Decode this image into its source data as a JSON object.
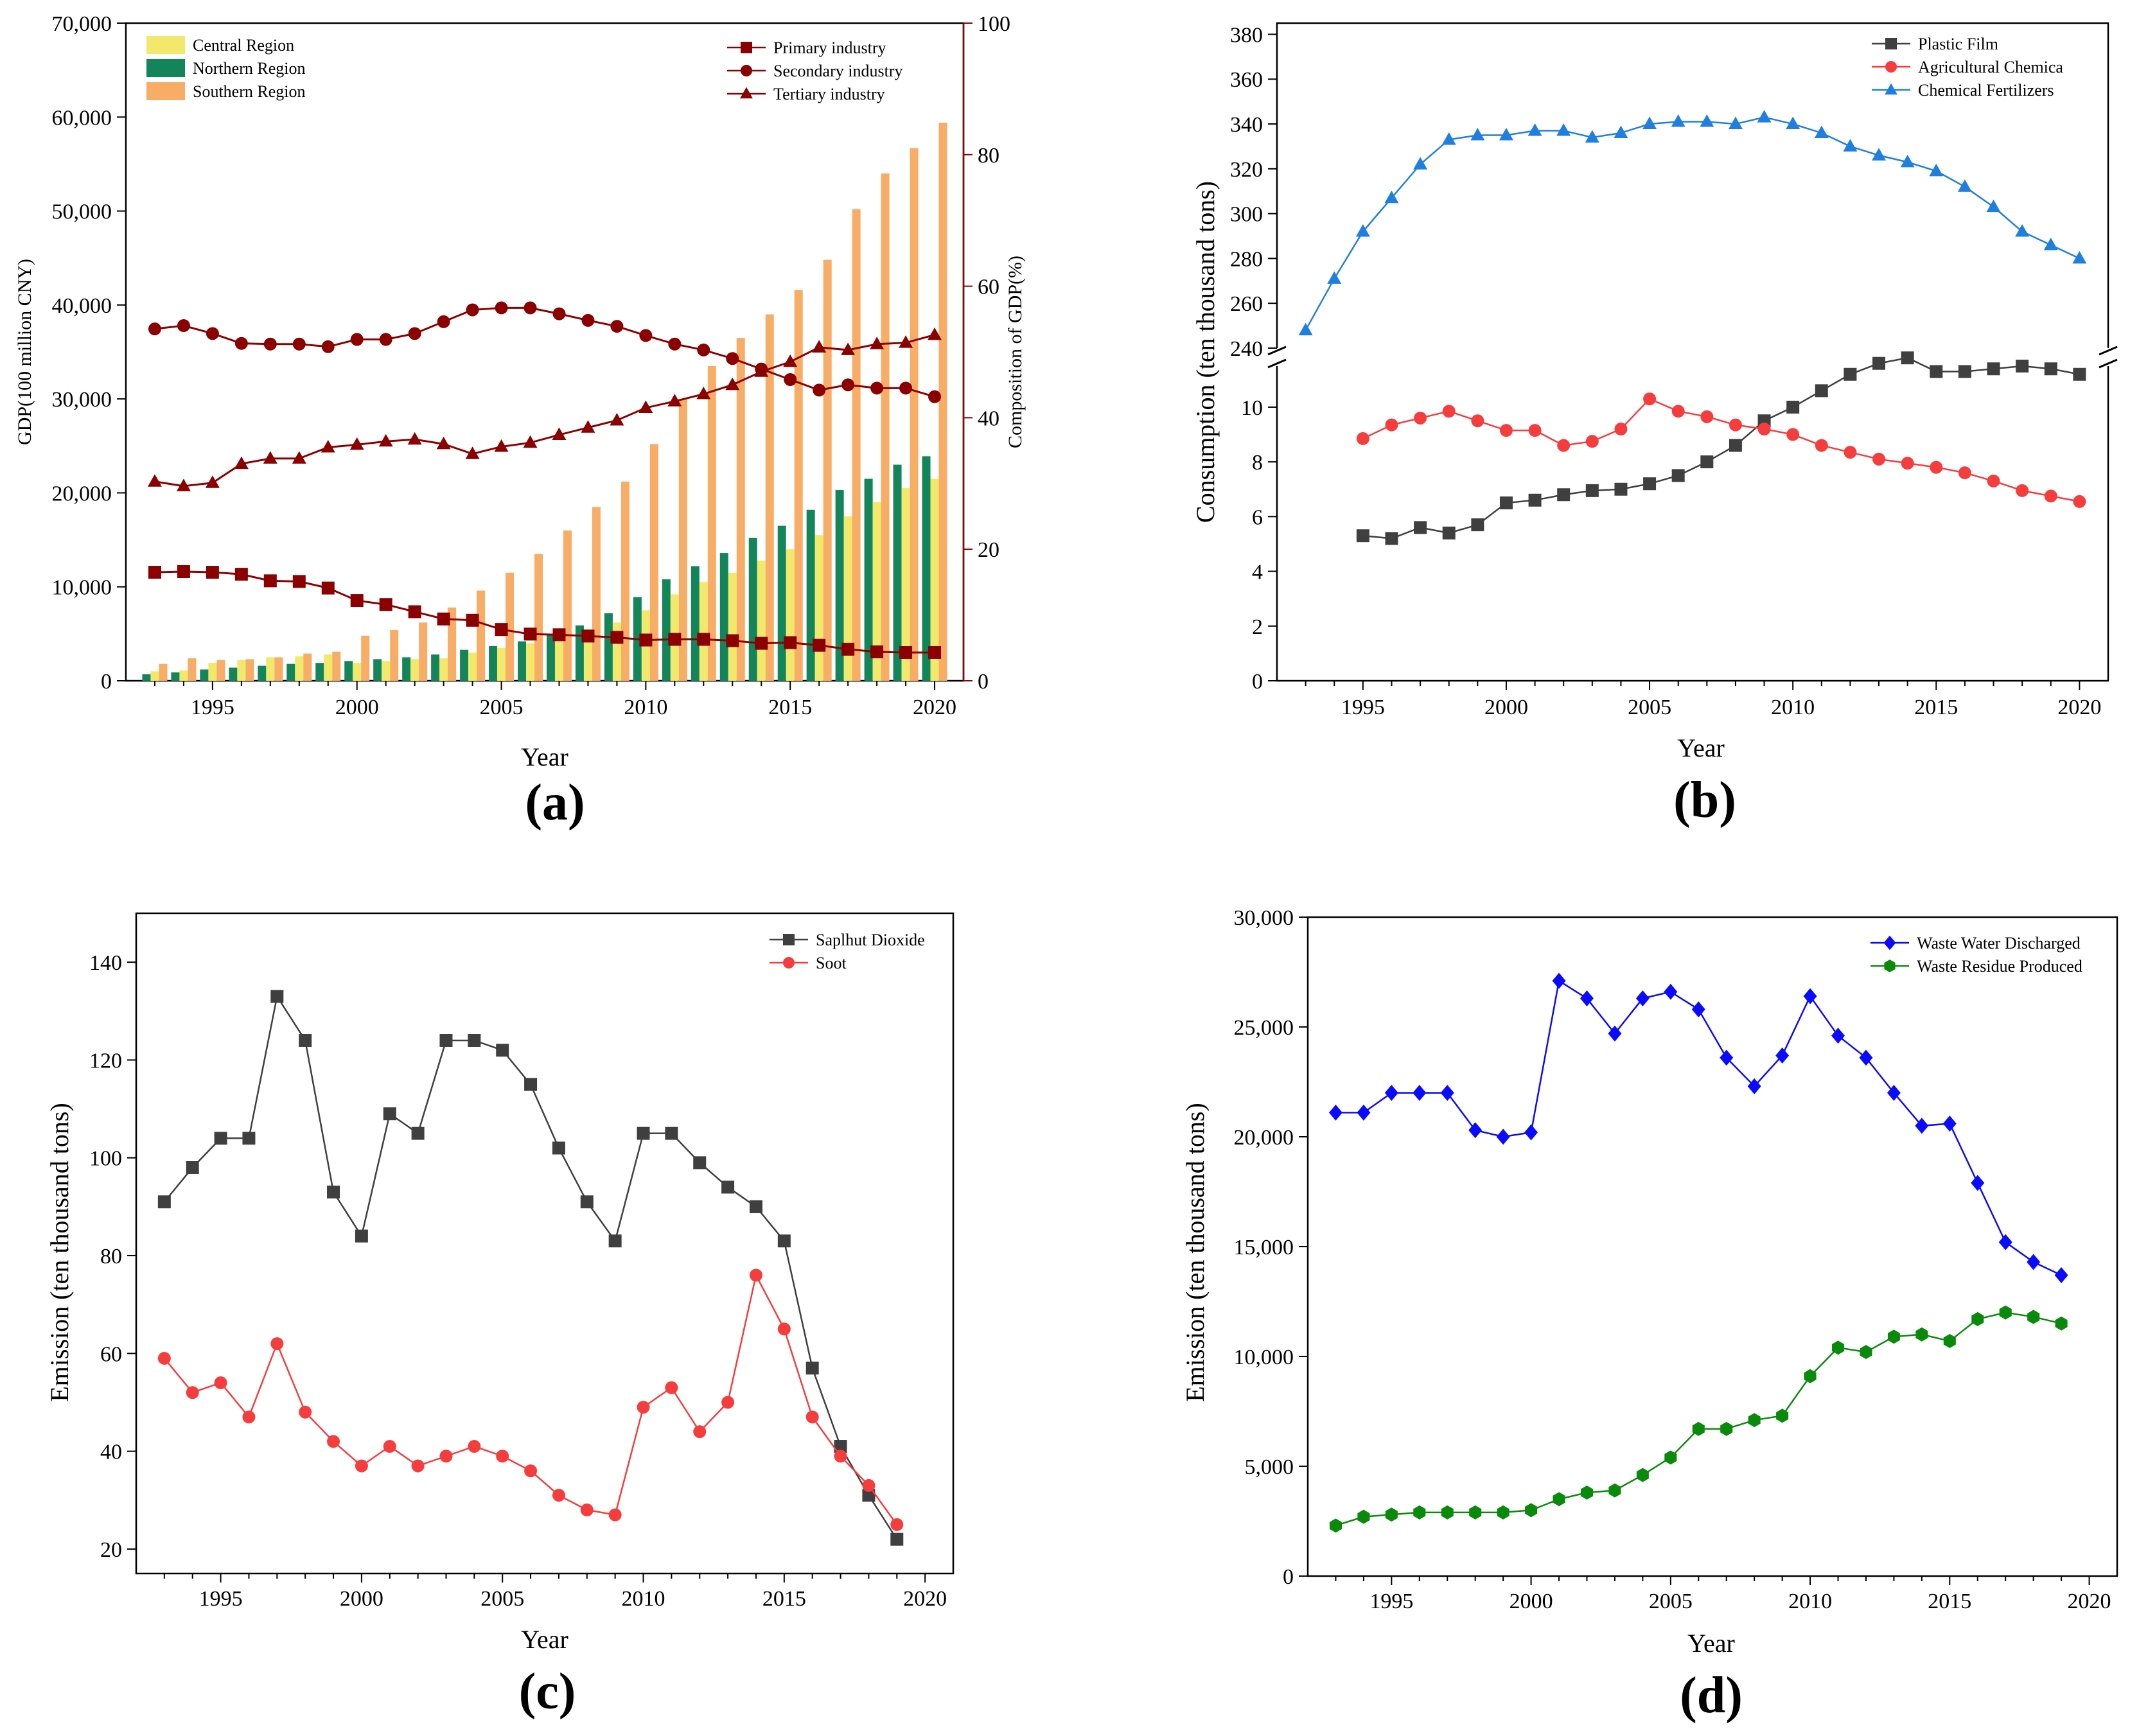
{
  "chart_data": [
    {
      "panel_label": "(a)",
      "type": "bar",
      "xlabel": "Year",
      "ylabel": "GDP(100 million CNY)",
      "y2label": "Composition of GDP(%)",
      "xlim": [
        1992,
        2021
      ],
      "xticks": [
        1995,
        2000,
        2005,
        2010,
        2015,
        2020
      ],
      "ylim": [
        0,
        70000
      ],
      "yticks": [
        "0",
        "10,000",
        "20,000",
        "30,000",
        "40,000",
        "50,000",
        "60,000",
        "70,000"
      ],
      "y2lim": [
        0,
        100
      ],
      "y2ticks": [
        "0",
        "20",
        "40",
        "60",
        "80",
        "100"
      ],
      "x": [
        1993,
        1994,
        1995,
        1996,
        1997,
        1998,
        1999,
        2000,
        2001,
        2002,
        2003,
        2004,
        2005,
        2006,
        2007,
        2008,
        2009,
        2010,
        2011,
        2012,
        2013,
        2014,
        2015,
        2016,
        2017,
        2018,
        2019,
        2020
      ],
      "bar_series": [
        {
          "name": "Central Region",
          "color": "#f2e86b",
          "values": [
            1000,
            1100,
            1900,
            2200,
            2500,
            2600,
            2800,
            1900,
            2100,
            2300,
            2400,
            3000,
            3500,
            4000,
            4700,
            5500,
            6200,
            7500,
            9200,
            10500,
            11500,
            12800,
            14000,
            15500,
            17500,
            19000,
            20500,
            21500
          ]
        },
        {
          "name": "Northern Region",
          "color": "#12865a",
          "values": [
            700,
            900,
            1200,
            1400,
            1600,
            1800,
            1900,
            2100,
            2300,
            2500,
            2800,
            3300,
            3700,
            4200,
            4900,
            5900,
            7200,
            8900,
            10800,
            12200,
            13600,
            15200,
            16500,
            18200,
            20300,
            21500,
            23000,
            23900
          ]
        },
        {
          "name": "Southern Region",
          "color": "#f8ad67",
          "values": [
            1800,
            2400,
            2200,
            2300,
            2500,
            2900,
            3100,
            4800,
            5400,
            6200,
            7800,
            9600,
            11500,
            13500,
            16000,
            18500,
            21200,
            25200,
            30000,
            33500,
            36500,
            39000,
            41600,
            44800,
            50200,
            54000,
            56700,
            59400
          ]
        }
      ],
      "line_series": [
        {
          "name": "Primary industry",
          "marker": "square",
          "color": "#8b0000",
          "values": [
            16.5,
            16.6,
            16.5,
            16.2,
            15.2,
            15.1,
            14.1,
            12.2,
            11.6,
            10.5,
            9.4,
            9.2,
            7.8,
            7.1,
            7.0,
            6.8,
            6.6,
            6.2,
            6.3,
            6.3,
            6.1,
            5.7,
            5.8,
            5.4,
            4.8,
            4.4,
            4.3,
            4.3
          ]
        },
        {
          "name": "Secondary industry",
          "marker": "circle",
          "color": "#8b0000",
          "values": [
            53.5,
            54.0,
            52.8,
            51.3,
            51.2,
            51.2,
            50.8,
            51.9,
            51.9,
            52.8,
            54.6,
            56.4,
            56.7,
            56.7,
            55.8,
            54.8,
            53.9,
            52.5,
            51.2,
            50.3,
            49.0,
            47.4,
            45.8,
            44.2,
            45.0,
            44.5,
            44.5,
            43.2
          ]
        },
        {
          "name": "Tertiary industry",
          "marker": "triangle",
          "color": "#8b0000",
          "values": [
            30.3,
            29.6,
            30.1,
            33.0,
            33.8,
            33.8,
            35.5,
            35.9,
            36.4,
            36.7,
            36.0,
            34.5,
            35.6,
            36.2,
            37.4,
            38.5,
            39.6,
            41.5,
            42.5,
            43.6,
            45.0,
            47.0,
            48.5,
            50.7,
            50.3,
            51.2,
            51.4,
            52.6
          ]
        }
      ]
    },
    {
      "panel_label": "(b)",
      "type": "line",
      "xlabel": "Year",
      "ylabel": "Consumption (ten thousand tons)",
      "xlim": [
        1992,
        2021
      ],
      "xticks": [
        1995,
        2000,
        2005,
        2010,
        2015,
        2020
      ],
      "broken_axis": true,
      "upper_ylim": [
        240,
        385
      ],
      "upper_yticks": [
        240,
        260,
        280,
        300,
        320,
        340,
        360,
        380
      ],
      "lower_ylim": [
        0,
        11.5
      ],
      "lower_yticks": [
        0,
        2,
        4,
        6,
        8,
        10
      ],
      "series": [
        {
          "name": "Plastic Film",
          "marker": "square",
          "color": "#3f3f3f",
          "axis": "lower",
          "x": [
            1995,
            1996,
            1997,
            1998,
            1999,
            2000,
            2001,
            2002,
            2003,
            2004,
            2005,
            2006,
            2007,
            2008,
            2009,
            2010,
            2011,
            2012,
            2013,
            2014,
            2015,
            2016,
            2017,
            2018,
            2019,
            2020
          ],
          "values": [
            5.3,
            5.2,
            5.6,
            5.4,
            5.7,
            6.5,
            6.6,
            6.8,
            6.95,
            7.0,
            7.2,
            7.5,
            8.0,
            8.6,
            9.5,
            10.0,
            10.6,
            11.2,
            11.6,
            11.8,
            11.3,
            11.3,
            11.4,
            11.5,
            11.4,
            11.2
          ]
        },
        {
          "name": "Agricultural Chemica",
          "marker": "circle",
          "color": "#f53d3d",
          "axis": "lower",
          "x": [
            1995,
            1996,
            1997,
            1998,
            1999,
            2000,
            2001,
            2002,
            2003,
            2004,
            2005,
            2006,
            2007,
            2008,
            2009,
            2010,
            2011,
            2012,
            2013,
            2014,
            2015,
            2016,
            2017,
            2018,
            2019,
            2020
          ],
          "values": [
            8.85,
            9.35,
            9.6,
            9.85,
            9.5,
            9.15,
            9.15,
            8.6,
            8.75,
            9.2,
            10.3,
            9.85,
            9.65,
            9.35,
            9.2,
            9.0,
            8.6,
            8.35,
            8.1,
            7.95,
            7.8,
            7.6,
            7.3,
            6.95,
            6.75,
            6.55
          ]
        },
        {
          "name": "Chemical Fertilizers",
          "marker": "triangle",
          "color": "#1f7fe0",
          "axis": "upper",
          "x": [
            1993,
            1994,
            1995,
            1996,
            1997,
            1998,
            1999,
            2000,
            2001,
            2002,
            2003,
            2004,
            2005,
            2006,
            2007,
            2008,
            2009,
            2010,
            2011,
            2012,
            2013,
            2014,
            2015,
            2016,
            2017,
            2018,
            2019,
            2020
          ],
          "values": [
            248,
            271,
            292,
            307,
            322,
            333,
            335,
            335,
            337,
            337,
            334,
            336,
            340,
            341,
            341,
            340,
            343,
            340,
            336,
            330,
            326,
            323,
            319,
            312,
            303,
            292,
            286,
            280
          ]
        }
      ]
    },
    {
      "panel_label": "(c)",
      "type": "line",
      "xlabel": "Year",
      "ylabel": "Emission (ten thousand tons)",
      "xlim": [
        1992,
        2021
      ],
      "xticks": [
        1995,
        2000,
        2005,
        2010,
        2015,
        2020
      ],
      "ylim": [
        15,
        150
      ],
      "yticks": [
        20,
        40,
        60,
        80,
        100,
        120,
        140
      ],
      "x": [
        1993,
        1994,
        1995,
        1996,
        1997,
        1998,
        1999,
        2000,
        2001,
        2002,
        2003,
        2004,
        2005,
        2006,
        2007,
        2008,
        2009,
        2010,
        2011,
        2012,
        2013,
        2014,
        2015,
        2016,
        2017,
        2018,
        2019
      ],
      "series": [
        {
          "name": "Saplhut Dioxide",
          "marker": "square",
          "color": "#3f3f3f",
          "values": [
            91,
            98,
            104,
            104,
            133,
            124,
            93,
            84,
            109,
            105,
            124,
            124,
            122,
            115,
            102,
            91,
            83,
            105,
            105,
            99,
            94,
            90,
            83,
            57,
            41,
            31,
            22
          ]
        },
        {
          "name": "Soot",
          "marker": "circle",
          "color": "#f53d3d",
          "values": [
            59,
            52,
            54,
            47,
            62,
            48,
            42,
            37,
            41,
            37,
            39,
            41,
            39,
            36,
            31,
            28,
            27,
            49,
            53,
            44,
            50,
            76,
            65,
            47,
            39,
            33,
            25
          ]
        }
      ]
    },
    {
      "panel_label": "(d)",
      "type": "line",
      "xlabel": "Year",
      "ylabel": "Emission (ten thousand tons)",
      "xlim": [
        1992,
        2021
      ],
      "xticks": [
        1995,
        2000,
        2005,
        2010,
        2015,
        2020
      ],
      "ylim": [
        0,
        30000
      ],
      "yticks": [
        "0",
        "5,000",
        "10,000",
        "15,000",
        "20,000",
        "25,000",
        "30,000"
      ],
      "x": [
        1993,
        1994,
        1995,
        1996,
        1997,
        1998,
        1999,
        2000,
        2001,
        2002,
        2003,
        2004,
        2005,
        2006,
        2007,
        2008,
        2009,
        2010,
        2011,
        2012,
        2013,
        2014,
        2015,
        2016,
        2017,
        2018,
        2019
      ],
      "series": [
        {
          "name": "Waste Water Discharged",
          "marker": "diamond",
          "color": "#0a0aff",
          "values": [
            21100,
            21100,
            22000,
            22000,
            22000,
            20300,
            20000,
            20200,
            27100,
            26300,
            24700,
            26300,
            26600,
            25800,
            23600,
            22300,
            23700,
            26400,
            24600,
            23600,
            22000,
            20500,
            20600,
            17900,
            15200,
            14300,
            13700
          ]
        },
        {
          "name": "Waste Residue Produced",
          "marker": "hexagon",
          "color": "#0a8a0a",
          "values": [
            2300,
            2700,
            2800,
            2900,
            2900,
            2900,
            2900,
            3000,
            3500,
            3800,
            3900,
            4600,
            5400,
            6700,
            6700,
            7100,
            7300,
            9100,
            10400,
            10200,
            10900,
            11000,
            10700,
            11700,
            12000,
            11800,
            11500
          ]
        }
      ]
    }
  ]
}
